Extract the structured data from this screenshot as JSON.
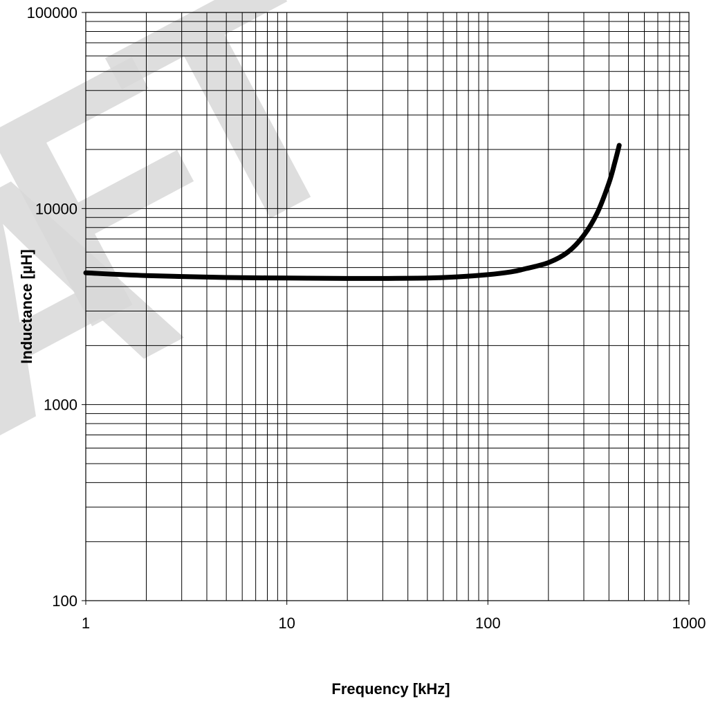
{
  "watermark": {
    "letters": [
      "A",
      "F",
      "T"
    ],
    "color": "#d9d9d9"
  },
  "chart_data": {
    "type": "line",
    "xlabel": "Frequency [kHz]",
    "ylabel": "Inductance [µH]",
    "x_scale": "log",
    "y_scale": "log",
    "xlim": [
      1,
      1000
    ],
    "ylim": [
      100,
      100000
    ],
    "x_ticks": [
      "1",
      "10",
      "100",
      "1000"
    ],
    "y_ticks": [
      "100",
      "1000",
      "10000",
      "100000"
    ],
    "grid": true,
    "series": [
      {
        "color": "#000000",
        "x": [
          1,
          2,
          5,
          10,
          20,
          30,
          50,
          70,
          100,
          130,
          150,
          200,
          250,
          300,
          350,
          400,
          430,
          450
        ],
        "y": [
          4700,
          4550,
          4450,
          4420,
          4400,
          4400,
          4420,
          4480,
          4600,
          4750,
          4900,
          5300,
          6000,
          7300,
          9500,
          13500,
          17500,
          21000
        ]
      }
    ]
  }
}
